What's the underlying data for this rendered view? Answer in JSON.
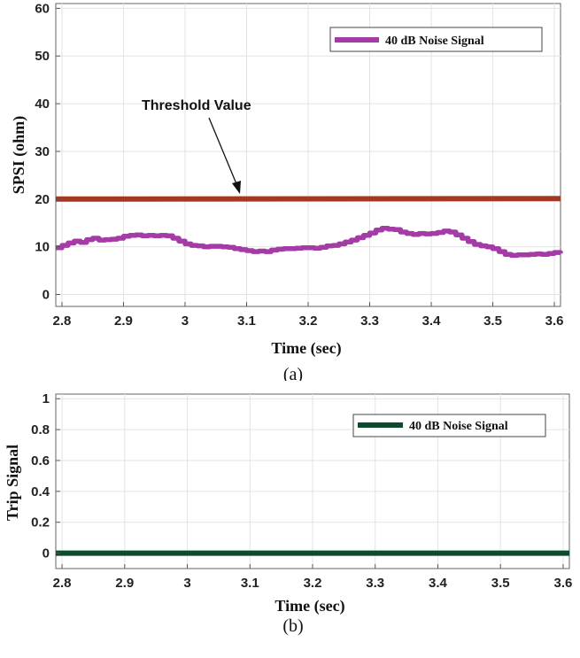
{
  "chart_data": [
    {
      "type": "line",
      "caption": "(a)",
      "xlabel": "Time (sec)",
      "ylabel": "SPSI (ohm)",
      "xlim": [
        2.79,
        3.61
      ],
      "ylim": [
        -2.5,
        61
      ],
      "xticks": [
        2.8,
        2.9,
        3,
        3.1,
        3.2,
        3.3,
        3.4,
        3.5,
        3.6
      ],
      "xtick_labels": [
        "2.8",
        "2.9",
        "3",
        "3.1",
        "3.2",
        "3.3",
        "3.4",
        "3.5",
        "3.6"
      ],
      "yticks": [
        0,
        10,
        20,
        30,
        40,
        50,
        60
      ],
      "ytick_labels": [
        "0",
        "10",
        "20",
        "30",
        "40",
        "50",
        "60"
      ],
      "legend_position": "top-right",
      "annotation": "Threshold Value",
      "series": [
        {
          "name": "40 dB Noise Signal",
          "color": "#a43ba6",
          "in_legend": true,
          "x": [
            2.79,
            2.8,
            2.81,
            2.82,
            2.83,
            2.84,
            2.85,
            2.86,
            2.87,
            2.88,
            2.89,
            2.9,
            2.91,
            2.92,
            2.93,
            2.94,
            2.95,
            2.96,
            2.97,
            2.98,
            2.99,
            3.0,
            3.01,
            3.02,
            3.03,
            3.04,
            3.05,
            3.06,
            3.07,
            3.08,
            3.09,
            3.1,
            3.11,
            3.12,
            3.13,
            3.14,
            3.15,
            3.16,
            3.17,
            3.18,
            3.19,
            3.2,
            3.21,
            3.22,
            3.23,
            3.24,
            3.25,
            3.26,
            3.27,
            3.28,
            3.29,
            3.3,
            3.31,
            3.32,
            3.33,
            3.34,
            3.35,
            3.36,
            3.37,
            3.38,
            3.39,
            3.4,
            3.41,
            3.42,
            3.43,
            3.44,
            3.45,
            3.46,
            3.47,
            3.48,
            3.49,
            3.5,
            3.51,
            3.52,
            3.53,
            3.54,
            3.55,
            3.56,
            3.57,
            3.58,
            3.59,
            3.6,
            3.61
          ],
          "values": [
            9.8,
            10.3,
            10.8,
            11.2,
            10.9,
            11.5,
            11.8,
            11.4,
            11.5,
            11.6,
            11.8,
            12.2,
            12.4,
            12.5,
            12.3,
            12.4,
            12.3,
            12.4,
            12.3,
            11.8,
            11.2,
            10.6,
            10.3,
            10.2,
            10.0,
            10.1,
            10.1,
            10.0,
            9.9,
            9.6,
            9.4,
            9.2,
            9.0,
            9.1,
            9.0,
            9.3,
            9.5,
            9.6,
            9.6,
            9.7,
            9.8,
            9.8,
            9.7,
            9.9,
            10.2,
            10.3,
            10.6,
            11.0,
            11.4,
            11.9,
            12.4,
            12.9,
            13.5,
            13.9,
            13.7,
            13.6,
            13.1,
            12.8,
            12.6,
            12.8,
            12.7,
            12.8,
            13.0,
            13.3,
            13.1,
            12.5,
            11.8,
            11.1,
            10.5,
            10.2,
            10.0,
            9.6,
            9.0,
            8.4,
            8.2,
            8.3,
            8.3,
            8.4,
            8.5,
            8.4,
            8.6,
            8.8,
            8.6
          ]
        },
        {
          "name": "Threshold Value",
          "color": "#a23a22",
          "in_legend": false,
          "x": [
            2.79,
            3.61
          ],
          "values": [
            20.0,
            20.1
          ]
        }
      ]
    },
    {
      "type": "line",
      "caption": "(b)",
      "xlabel": "Time (sec)",
      "ylabel": "Trip Signal",
      "xlim": [
        2.79,
        3.61
      ],
      "ylim": [
        -0.1,
        1.03
      ],
      "xticks": [
        2.8,
        2.9,
        3,
        3.1,
        3.2,
        3.3,
        3.4,
        3.5,
        3.6
      ],
      "xtick_labels": [
        "2.8",
        "2.9",
        "3",
        "3.1",
        "3.2",
        "3.3",
        "3.4",
        "3.5",
        "3.6"
      ],
      "yticks": [
        0,
        0.2,
        0.4,
        0.6,
        0.8,
        1
      ],
      "ytick_labels": [
        "0",
        "0.2",
        "0.4",
        "0.6",
        "0.8",
        "1"
      ],
      "legend_position": "top-right",
      "series": [
        {
          "name": "40 dB Noise Signal",
          "color": "#0e4a2c",
          "in_legend": true,
          "x": [
            2.79,
            3.61
          ],
          "values": [
            0,
            0
          ]
        }
      ]
    }
  ]
}
